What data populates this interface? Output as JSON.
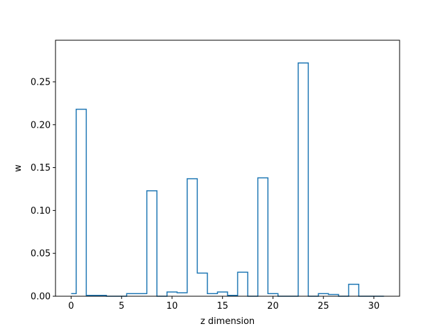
{
  "chart_data": {
    "type": "step",
    "title": "",
    "xlabel": "z dimension",
    "ylabel": "w",
    "xlim": [
      -1.55,
      32.55
    ],
    "ylim": [
      0.0,
      0.2985
    ],
    "xticks": [
      0,
      5,
      10,
      15,
      20,
      25,
      30
    ],
    "yticks": [
      0.0,
      0.05,
      0.1,
      0.15,
      0.2,
      0.25
    ],
    "xtick_labels": [
      "0",
      "5",
      "10",
      "15",
      "20",
      "25",
      "30"
    ],
    "ytick_labels": [
      "0.00",
      "0.05",
      "0.10",
      "0.15",
      "0.20",
      "0.25"
    ],
    "step_where": "mid",
    "series": [
      {
        "color": "#1f77b4",
        "x": [
          0,
          1,
          2,
          3,
          4,
          5,
          6,
          7,
          8,
          9,
          10,
          11,
          12,
          13,
          14,
          15,
          16,
          17,
          18,
          19,
          20,
          21,
          22,
          23,
          24,
          25,
          26,
          27,
          28,
          29,
          30,
          31
        ],
        "values": [
          0.003,
          0.218,
          0.001,
          0.001,
          0.0,
          0.0,
          0.003,
          0.003,
          0.123,
          0.0,
          0.005,
          0.004,
          0.137,
          0.027,
          0.003,
          0.005,
          0.001,
          0.028,
          0.0,
          0.138,
          0.003,
          0.0,
          0.0,
          0.272,
          0.0,
          0.003,
          0.002,
          0.0,
          0.014,
          0.0,
          0.0,
          0.0
        ]
      }
    ]
  }
}
